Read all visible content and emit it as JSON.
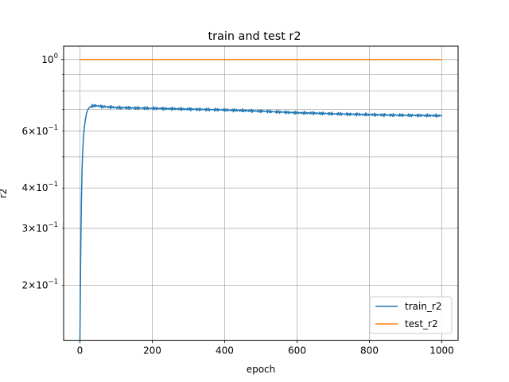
{
  "chart_data": {
    "type": "line",
    "title": "train and test r2",
    "xlabel": "epoch",
    "ylabel": "r2",
    "xlim": [
      -45,
      1045
    ],
    "ylim": [
      0.135,
      1.1
    ],
    "yscale": "log",
    "grid": true,
    "legend_position": "lower-right",
    "x_ticks": [
      {
        "value": 0,
        "label": "0"
      },
      {
        "value": 200,
        "label": "200"
      },
      {
        "value": 400,
        "label": "400"
      },
      {
        "value": 600,
        "label": "600"
      },
      {
        "value": 800,
        "label": "800"
      },
      {
        "value": 1000,
        "label": "1000"
      }
    ],
    "y_ticks_major": [
      {
        "value": 1.0,
        "label": "10",
        "exp": "0"
      }
    ],
    "y_ticks_minor_labeled": [
      {
        "value": 0.2,
        "label": "2×10",
        "exp": "−1"
      },
      {
        "value": 0.3,
        "label": "3×10",
        "exp": "−1"
      },
      {
        "value": 0.4,
        "label": "4×10",
        "exp": "−1"
      },
      {
        "value": 0.6,
        "label": "6×10",
        "exp": "−1"
      }
    ],
    "y_minor_grid": [
      0.2,
      0.3,
      0.4,
      0.5,
      0.6,
      0.7,
      0.8,
      0.9
    ],
    "series": [
      {
        "name": "train_r2",
        "color": "#1f77b4",
        "x": [
          0,
          2,
          4,
          6,
          8,
          10,
          14,
          18,
          22,
          26,
          30,
          35,
          40,
          50,
          60,
          80,
          100,
          150,
          200,
          250,
          300,
          350,
          400,
          450,
          500,
          550,
          600,
          650,
          700,
          750,
          800,
          850,
          900,
          950,
          1000
        ],
        "y": [
          0.1,
          0.24,
          0.36,
          0.46,
          0.53,
          0.58,
          0.64,
          0.68,
          0.7,
          0.71,
          0.715,
          0.718,
          0.72,
          0.718,
          0.715,
          0.713,
          0.71,
          0.708,
          0.706,
          0.704,
          0.702,
          0.7,
          0.698,
          0.695,
          0.692,
          0.688,
          0.684,
          0.682,
          0.679,
          0.677,
          0.675,
          0.673,
          0.672,
          0.671,
          0.67
        ]
      },
      {
        "name": "test_r2",
        "color": "#ff7f0e",
        "x": [
          0,
          1000
        ],
        "y": [
          1.0,
          1.0
        ]
      }
    ]
  }
}
